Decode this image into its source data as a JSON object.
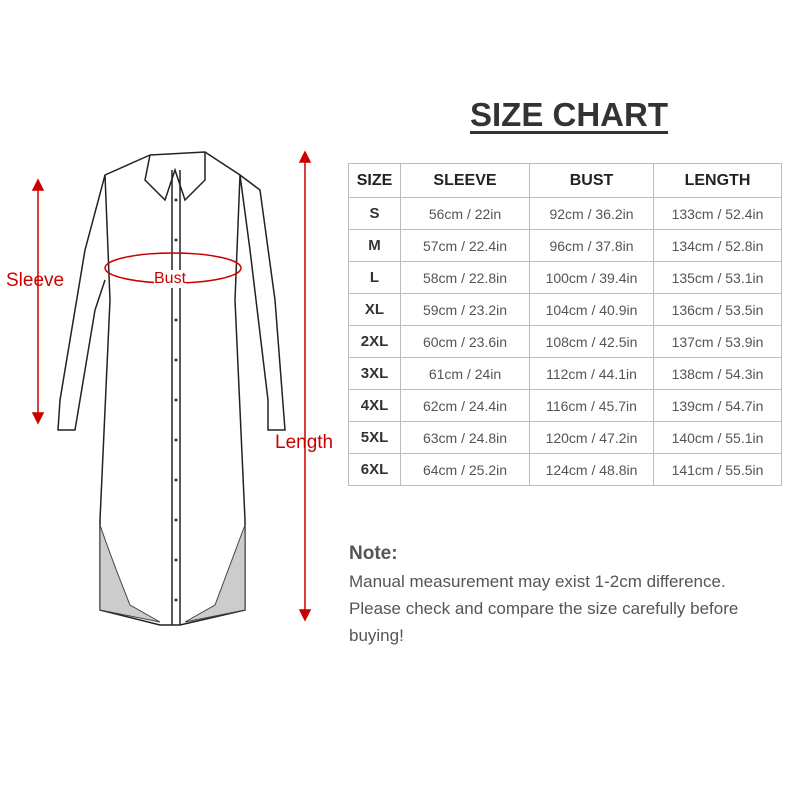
{
  "title": "SIZE CHART",
  "labels": {
    "sleeve": "Sleeve",
    "bust": "Bust",
    "length": "Length"
  },
  "accent_color": "#cc0000",
  "table": {
    "headers": [
      "SIZE",
      "SLEEVE",
      "BUST",
      "LENGTH"
    ],
    "rows": [
      [
        "S",
        "56cm / 22in",
        "92cm / 36.2in",
        "133cm / 52.4in"
      ],
      [
        "M",
        "57cm / 22.4in",
        "96cm / 37.8in",
        "134cm / 52.8in"
      ],
      [
        "L",
        "58cm / 22.8in",
        "100cm / 39.4in",
        "135cm / 53.1in"
      ],
      [
        "XL",
        "59cm / 23.2in",
        "104cm / 40.9in",
        "136cm / 53.5in"
      ],
      [
        "2XL",
        "60cm / 23.6in",
        "108cm / 42.5in",
        "137cm / 53.9in"
      ],
      [
        "3XL",
        "61cm / 24in",
        "112cm / 44.1in",
        "138cm / 54.3in"
      ],
      [
        "4XL",
        "62cm / 24.4in",
        "116cm / 45.7in",
        "139cm / 54.7in"
      ],
      [
        "5XL",
        "63cm / 24.8in",
        "120cm / 47.2in",
        "140cm / 55.1in"
      ],
      [
        "6XL",
        "64cm / 25.2in",
        "124cm / 48.8in",
        "141cm / 55.5in"
      ]
    ]
  },
  "note": {
    "title": "Note:",
    "lines": [
      "Manual measurement may exist 1-2cm difference.",
      "Please check and compare the size carefully before",
      "buying!"
    ]
  }
}
